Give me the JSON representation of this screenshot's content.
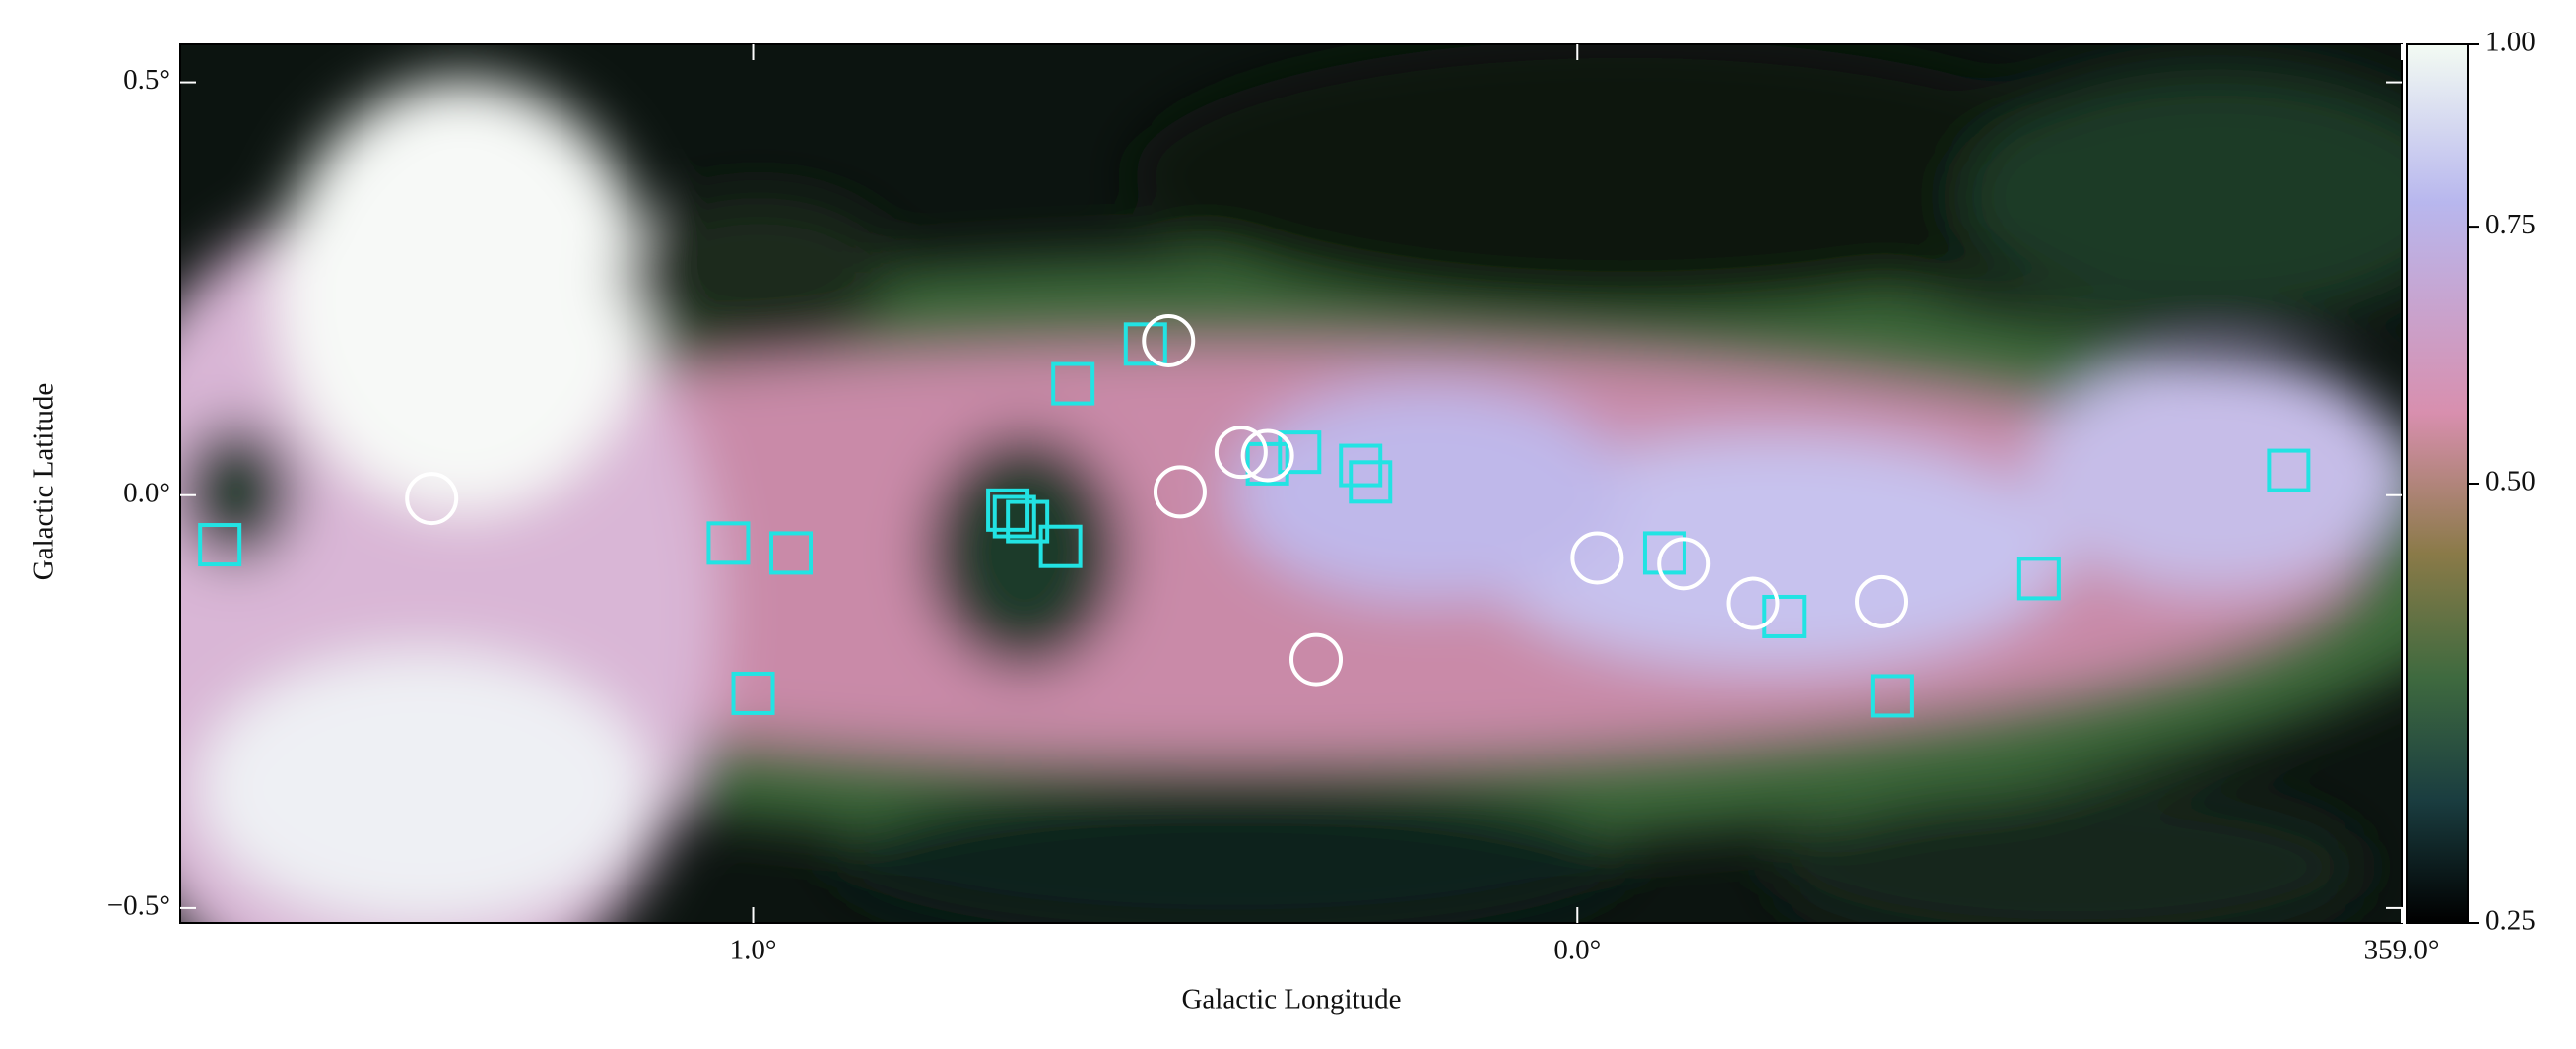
{
  "chart_data": {
    "type": "scatter",
    "xlabel": "Galactic Longitude",
    "ylabel": "Galactic Latitude",
    "xlim": [
      1.695,
      -1.0
    ],
    "ylim": [
      -0.518,
      0.546
    ],
    "xticks": [
      {
        "value": 1,
        "label": "1.0°"
      },
      {
        "value": 0,
        "label": "0.0°"
      },
      {
        "value": -1,
        "label": "359.0°"
      }
    ],
    "yticks": [
      {
        "value": 0.5,
        "label": "0.5°"
      },
      {
        "value": 0,
        "label": "0.0°"
      },
      {
        "value": -0.5,
        "label": "−0.5°"
      }
    ],
    "colorbar": {
      "lim": [
        0.25,
        1.0
      ],
      "scale": "log",
      "ticks": [
        0.25,
        {
          "value": 0.5,
          "label": "0.50"
        },
        0.75,
        {
          "value": 1,
          "label": "1.00"
        }
      ]
    },
    "series": [
      {
        "marker": "square",
        "color": "#22e3e3",
        "x": [
          1.647,
          1.03,
          0.954,
          1.0,
          0.612,
          0.524,
          0.691,
          0.683,
          0.667,
          0.627,
          0.376,
          0.337,
          0.263,
          0.251,
          -0.106,
          -0.251,
          -0.382,
          -0.56,
          -0.863
        ],
        "y": [
          -0.06,
          -0.058,
          -0.07,
          -0.24,
          0.135,
          0.183,
          -0.018,
          -0.026,
          -0.032,
          -0.062,
          0.038,
          0.052,
          0.036,
          0.016,
          -0.07,
          -0.147,
          -0.243,
          -0.101,
          0.03
        ]
      },
      {
        "marker": "circle",
        "color": "#ffffff",
        "x": [
          1.39,
          0.496,
          0.482,
          0.408,
          0.376,
          0.317,
          -0.024,
          -0.129,
          -0.213,
          -0.369
        ],
        "y": [
          -0.004,
          0.187,
          0.004,
          0.052,
          0.048,
          -0.199,
          -0.076,
          -0.083,
          -0.131,
          -0.129
        ]
      }
    ]
  }
}
